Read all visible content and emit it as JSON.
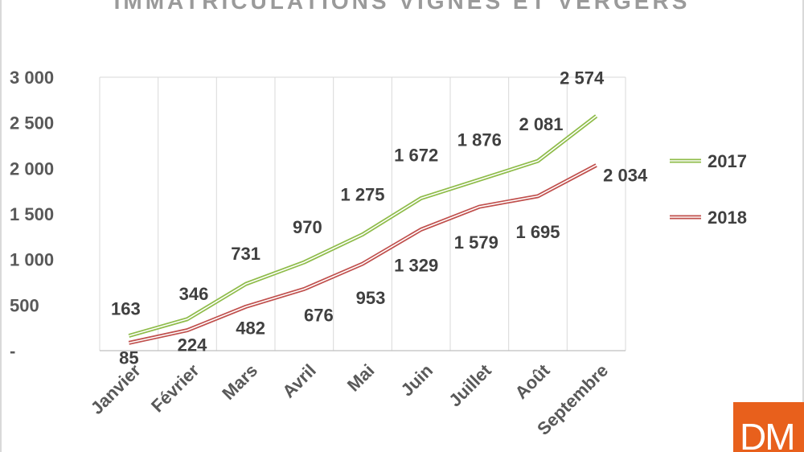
{
  "chart_data": {
    "type": "line",
    "title": "IMMATRICULATIONS VIGNES ET VERGERS",
    "categories": [
      "Janvier",
      "Février",
      "Mars",
      "Avril",
      "Mai",
      "Juin",
      "Juillet",
      "Août",
      "Septembre"
    ],
    "series": [
      {
        "name": "2017",
        "color": "#8fbc4a",
        "values": [
          163,
          346,
          731,
          970,
          1275,
          1672,
          1876,
          2081,
          2574
        ],
        "labels": [
          "163",
          "346",
          "731",
          "970",
          "1 275",
          "1 672",
          "1 876",
          "2 081",
          "2 574"
        ]
      },
      {
        "name": "2018",
        "color": "#c0504d",
        "values": [
          85,
          224,
          482,
          676,
          953,
          1329,
          1579,
          1695,
          2034
        ],
        "labels": [
          "85",
          "224",
          "482",
          "676",
          "953",
          "1 329",
          "1 579",
          "1 695",
          "2 034"
        ]
      }
    ],
    "yticks": [
      {
        "value": 0,
        "label": "-"
      },
      {
        "value": 500,
        "label": "500"
      },
      {
        "value": 1000,
        "label": "1 000"
      },
      {
        "value": 1500,
        "label": "1 500"
      },
      {
        "value": 2000,
        "label": "2 000"
      },
      {
        "value": 2500,
        "label": "2 500"
      },
      {
        "value": 3000,
        "label": "3 000"
      }
    ],
    "ylim": [
      0,
      3000
    ],
    "xlabel": "",
    "ylabel": "",
    "grid": "vertical",
    "legend": "right"
  },
  "logo": {
    "text": "DM"
  }
}
